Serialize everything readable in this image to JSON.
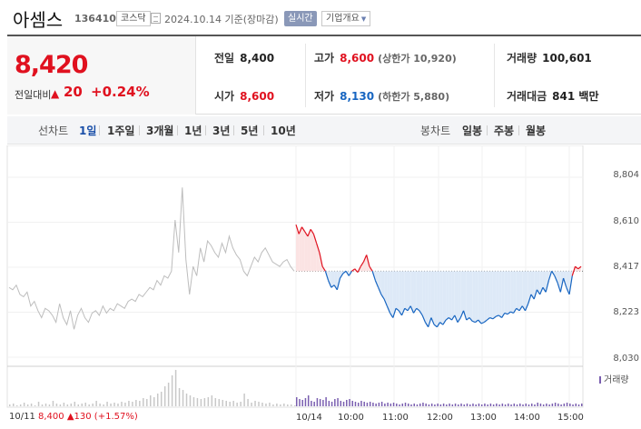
{
  "header": {
    "name": "아셈스",
    "code": "136410",
    "market": "코스닥",
    "date_text": "2024.10.14  기준(장마감)",
    "realtime": "실시간",
    "overview": "기업개요"
  },
  "quote": {
    "price": "8,420",
    "change_label": "전일대비",
    "change_arrow": "▲",
    "change_value": "20",
    "change_rate": "+0.24%",
    "prev_close": {
      "label": "전일",
      "value": "8,400"
    },
    "open": {
      "label": "시가",
      "value": "8,600"
    },
    "high": {
      "label": "고가",
      "value": "8,600",
      "sub": "(상한가 10,920)"
    },
    "low": {
      "label": "저가",
      "value": "8,130",
      "sub": "(하한가 5,880)"
    },
    "volume": {
      "label": "거래량",
      "value": "100,601"
    },
    "amount": {
      "label": "거래대금",
      "value": "841 백만"
    }
  },
  "tabs": {
    "line_label": "선차트",
    "line_periods": [
      "1일",
      "1주일",
      "3개월",
      "1년",
      "3년",
      "5년",
      "10년"
    ],
    "active_period": "1일",
    "candle_label": "봉차트",
    "candle_periods": [
      "일봉",
      "주봉",
      "월봉"
    ]
  },
  "chart_data": {
    "type": "line",
    "y_ticks": [
      "8,804",
      "8,610",
      "8,417",
      "8,223",
      "8,030"
    ],
    "ylim": [
      8030,
      8804
    ],
    "reference_price": 8400,
    "x_ticks": [
      "10/14",
      "10:00",
      "11:00",
      "12:00",
      "13:00",
      "14:00",
      "15:00"
    ],
    "prev_day_label": "10/11",
    "prev_day_price": "8,400",
    "prev_day_change": "▲130 (+1.57%)",
    "volume_legend": "거래량",
    "colors": {
      "up": "#e0111f",
      "down": "#1765c1",
      "prev": "#bdbdbd",
      "volume": "#7a5fb0"
    },
    "prev_day_series": [
      8330,
      8320,
      8340,
      8300,
      8290,
      8310,
      8250,
      8270,
      8230,
      8200,
      8240,
      8230,
      8210,
      8180,
      8260,
      8200,
      8170,
      8230,
      8150,
      8210,
      8240,
      8200,
      8180,
      8220,
      8230,
      8210,
      8250,
      8220,
      8240,
      8230,
      8260,
      8250,
      8240,
      8270,
      8280,
      8270,
      8300,
      8290,
      8310,
      8330,
      8320,
      8360,
      8340,
      8380,
      8370,
      8400,
      8620,
      8480,
      8760,
      8450,
      8300,
      8420,
      8380,
      8500,
      8440,
      8530,
      8510,
      8480,
      8460,
      8520,
      8480,
      8550,
      8500,
      8470,
      8450,
      8400,
      8380,
      8420,
      8460,
      8440,
      8480,
      8500,
      8470,
      8440,
      8430,
      8420,
      8440,
      8450,
      8420,
      8400
    ],
    "today_series": [
      8600,
      8560,
      8590,
      8570,
      8550,
      8580,
      8560,
      8520,
      8480,
      8420,
      8400,
      8360,
      8330,
      8340,
      8320,
      8370,
      8390,
      8400,
      8380,
      8400,
      8410,
      8395,
      8420,
      8440,
      8470,
      8420,
      8400,
      8360,
      8330,
      8300,
      8280,
      8250,
      8220,
      8200,
      8240,
      8230,
      8210,
      8240,
      8230,
      8250,
      8220,
      8240,
      8230,
      8210,
      8180,
      8160,
      8200,
      8170,
      8160,
      8180,
      8170,
      8190,
      8200,
      8190,
      8210,
      8180,
      8200,
      8230,
      8190,
      8200,
      8185,
      8180,
      8190,
      8175,
      8180,
      8190,
      8200,
      8195,
      8205,
      8210,
      8200,
      8220,
      8215,
      8225,
      8220,
      8240,
      8230,
      8250,
      8230,
      8260,
      8300,
      8280,
      8320,
      8300,
      8330,
      8310,
      8360,
      8400,
      8380,
      8350,
      8310,
      8370,
      8330,
      8300,
      8380,
      8420,
      8410,
      8420
    ],
    "prev_day_volume": [
      2,
      3,
      1,
      2,
      4,
      2,
      3,
      1,
      5,
      2,
      3,
      2,
      6,
      3,
      2,
      4,
      2,
      3,
      5,
      2,
      3,
      4,
      2,
      3,
      6,
      3,
      2,
      5,
      3,
      4,
      3,
      5,
      4,
      6,
      5,
      7,
      6,
      9,
      8,
      12,
      10,
      14,
      16,
      22,
      26,
      34,
      40,
      20,
      18,
      14,
      12,
      10,
      9,
      8,
      9,
      10,
      12,
      9,
      8,
      7,
      6,
      5,
      6,
      4,
      5,
      14,
      8,
      4,
      6,
      5,
      4,
      3,
      4,
      2,
      3,
      2,
      3,
      2,
      2,
      1
    ],
    "today_volume": [
      10,
      8,
      7,
      9,
      12,
      6,
      5,
      9,
      8,
      7,
      10,
      6,
      5,
      8,
      9,
      6,
      5,
      7,
      8,
      6,
      5,
      4,
      6,
      5,
      4,
      5,
      4,
      3,
      4,
      5,
      3,
      4,
      3,
      4,
      3,
      2,
      3,
      4,
      3,
      2,
      3,
      2,
      3,
      4,
      3,
      2,
      3,
      2,
      3,
      2,
      3,
      2,
      3,
      2,
      3,
      2,
      3,
      2,
      3,
      2,
      3,
      2,
      3,
      2,
      3,
      2,
      3,
      2,
      3,
      2,
      3,
      2,
      3,
      2,
      3,
      2,
      3,
      2,
      3,
      2,
      3,
      2,
      4,
      3,
      2,
      3,
      2,
      3,
      4,
      3,
      2,
      3,
      4,
      3,
      2,
      3,
      2,
      3
    ]
  }
}
